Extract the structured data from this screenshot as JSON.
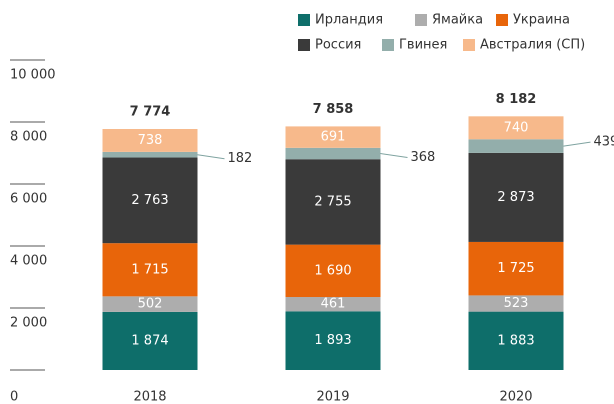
{
  "chart_data": {
    "type": "stacked_bar",
    "categories": [
      "2018",
      "2019",
      "2020"
    ],
    "series": [
      {
        "name": "Ирландия",
        "color": "#0e6e6a",
        "values": [
          1874,
          1893,
          1883
        ],
        "value_labels": [
          "1 874",
          "1 893",
          "1 883"
        ]
      },
      {
        "name": "Ямайка",
        "color": "#adadad",
        "values": [
          502,
          461,
          523
        ],
        "value_labels": [
          "502",
          "461",
          "523"
        ]
      },
      {
        "name": "Украина",
        "color": "#e8650a",
        "values": [
          1715,
          1690,
          1725
        ],
        "value_labels": [
          "1 715",
          "1 690",
          "1 725"
        ]
      },
      {
        "name": "Россия",
        "color": "#3a3a3a",
        "values": [
          2763,
          2755,
          2873
        ],
        "value_labels": [
          "2 763",
          "2 755",
          "2 873"
        ]
      },
      {
        "name": "Гвинея",
        "color": "#93aeab",
        "values": [
          182,
          368,
          439
        ],
        "value_labels": [
          "182",
          "368",
          "439"
        ]
      },
      {
        "name": "Австралия (СП)",
        "color": "#f7b98b",
        "values": [
          738,
          691,
          740
        ],
        "value_labels": [
          "738",
          "691",
          "740"
        ]
      }
    ],
    "totals": {
      "values": [
        7774,
        7858,
        8182
      ],
      "value_labels": [
        "7 774",
        "7 858",
        "8 182"
      ]
    },
    "ylim": [
      0,
      10000
    ],
    "yticks": [
      {
        "value": 0,
        "label": "0"
      },
      {
        "value": 2000,
        "label": "2 000"
      },
      {
        "value": 4000,
        "label": "4 000"
      },
      {
        "value": 6000,
        "label": "6 000"
      },
      {
        "value": 8000,
        "label": "8 000"
      },
      {
        "value": 10000,
        "label": "10 000"
      }
    ]
  }
}
